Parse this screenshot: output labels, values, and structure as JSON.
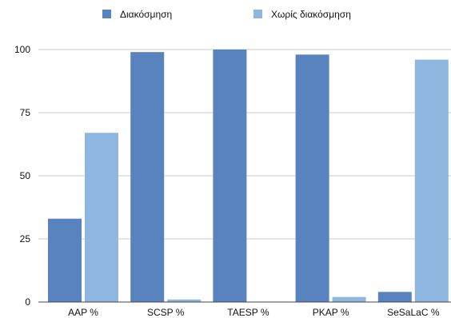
{
  "chart_data": {
    "type": "bar",
    "categories": [
      "AAP %",
      "SCSP %",
      "TAESP %",
      "PKAP %",
      "SeSaLaC %"
    ],
    "series": [
      {
        "name": "Διακόσμηση",
        "color": "#5883BF",
        "values": [
          33,
          99,
          100,
          98,
          4
        ]
      },
      {
        "name": "Χωρίς διακόσμηση",
        "color": "#8EB6DE",
        "values": [
          67,
          1,
          0,
          2,
          96
        ]
      }
    ],
    "ylim": [
      0,
      100
    ],
    "yticks": [
      "0",
      "25",
      "50",
      "75",
      "100"
    ],
    "grid": "horizontal",
    "grid_color": "#C8C8C8",
    "legend_position": "top"
  }
}
